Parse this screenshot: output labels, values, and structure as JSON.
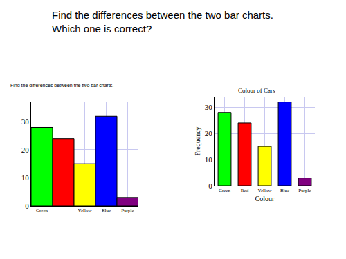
{
  "heading": [
    "Find the differences between the two bar charts.",
    "Which one is correct?"
  ],
  "subheading": "Find the differences between the two bar charts.",
  "chart_data": [
    {
      "type": "bar",
      "categories": [
        "Green",
        null,
        "Yellow",
        "Blue",
        "Purple"
      ],
      "values": [
        28,
        24,
        15,
        32,
        3
      ],
      "colors": [
        "#00ff00",
        "#ff0000",
        "#ffff00",
        "#0000ff",
        "#800080"
      ],
      "ylim": [
        0,
        37
      ],
      "yticks": [
        0,
        10,
        20,
        30
      ],
      "grid": true
    },
    {
      "type": "bar",
      "title": "Colour of Cars",
      "x_label": "Colour",
      "y_label": "Frequency",
      "categories": [
        "Green",
        "Red",
        "Yellow",
        "Blue",
        "Purple"
      ],
      "values": [
        28,
        24,
        15,
        32,
        3
      ],
      "colors": [
        "#00ff00",
        "#ff0000",
        "#ffff00",
        "#0000ff",
        "#800080"
      ],
      "ylim": [
        0,
        34
      ],
      "yticks": [
        0,
        10,
        20,
        30
      ],
      "grid": true
    }
  ]
}
